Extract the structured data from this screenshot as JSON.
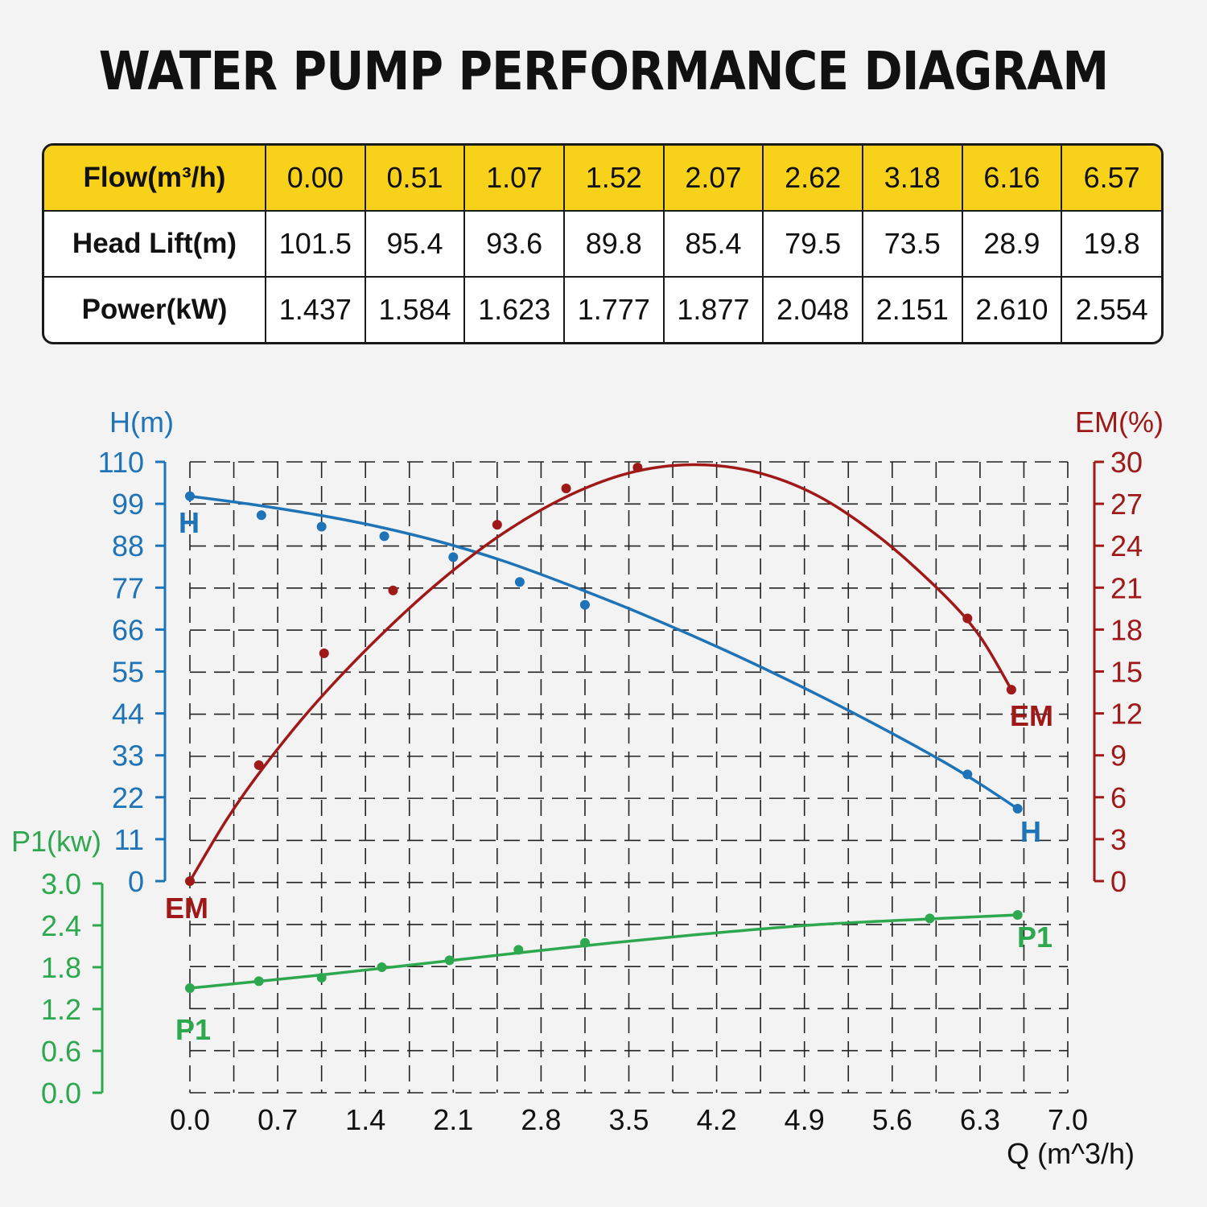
{
  "title": "WATER PUMP PERFORMANCE DIAGRAM",
  "table": {
    "rows": [
      {
        "label": "Flow(m³/h)",
        "values": [
          "0.00",
          "0.51",
          "1.07",
          "1.52",
          "2.07",
          "2.62",
          "3.18",
          "6.16",
          "6.57"
        ]
      },
      {
        "label": "Head Lift(m)",
        "values": [
          "101.5",
          "95.4",
          "93.6",
          "89.8",
          "85.4",
          "79.5",
          "73.5",
          "28.9",
          "19.8"
        ]
      },
      {
        "label": "Power(kW)",
        "values": [
          "1.437",
          "1.584",
          "1.623",
          "1.777",
          "1.877",
          "2.048",
          "2.151",
          "2.610",
          "2.554"
        ]
      }
    ]
  },
  "chart_data": {
    "type": "line",
    "xlabel": "Q (m^3/h)",
    "xlim": [
      0,
      7.0
    ],
    "xticks": [
      "0.0",
      "0.7",
      "1.4",
      "2.1",
      "2.8",
      "3.5",
      "4.2",
      "4.9",
      "5.6",
      "6.3",
      "7.0"
    ],
    "grid": true,
    "axes": {
      "head": {
        "label": "H(m)",
        "lim": [
          0,
          110
        ],
        "ticks": [
          "0",
          "11",
          "22",
          "33",
          "44",
          "55",
          "66",
          "77",
          "88",
          "99",
          "110"
        ],
        "color": "#1f73b7"
      },
      "efficiency": {
        "label": "EM(%)",
        "lim": [
          0,
          30
        ],
        "ticks": [
          "0",
          "3",
          "6",
          "9",
          "12",
          "15",
          "18",
          "21",
          "24",
          "27",
          "30"
        ],
        "color": "#a01919"
      },
      "power": {
        "label": "P1(kw)",
        "lim": [
          0,
          3.0
        ],
        "ticks": [
          "0.0",
          "0.6",
          "1.2",
          "1.8",
          "2.4",
          "3.0"
        ],
        "color": "#2ea84f"
      }
    },
    "series": [
      {
        "name": "H",
        "axis": "head",
        "points": [
          [
            0,
            101
          ],
          [
            0.57,
            96
          ],
          [
            1.05,
            93
          ],
          [
            1.55,
            90.5
          ],
          [
            2.1,
            85
          ],
          [
            2.63,
            78.5
          ],
          [
            3.15,
            72.5
          ],
          [
            6.2,
            28
          ],
          [
            6.6,
            19
          ]
        ],
        "curve": [
          [
            0,
            101
          ],
          [
            0.5,
            98.8
          ],
          [
            1.0,
            96.2
          ],
          [
            1.5,
            93
          ],
          [
            2.0,
            89
          ],
          [
            2.5,
            84
          ],
          [
            3.0,
            78
          ],
          [
            3.5,
            71.5
          ],
          [
            4.0,
            64.5
          ],
          [
            4.5,
            57
          ],
          [
            5.0,
            49
          ],
          [
            5.5,
            40.5
          ],
          [
            6.0,
            31.5
          ],
          [
            6.3,
            25.5
          ],
          [
            6.6,
            19
          ]
        ],
        "labels": [
          "H",
          "H"
        ]
      },
      {
        "name": "EM",
        "axis": "efficiency",
        "points": [
          [
            0,
            0
          ],
          [
            0.55,
            8.3
          ],
          [
            1.07,
            16.3
          ],
          [
            1.62,
            20.8
          ],
          [
            2.45,
            25.5
          ],
          [
            3.0,
            28.1
          ],
          [
            3.57,
            29.6
          ],
          [
            6.2,
            18.8
          ],
          [
            6.55,
            13.7
          ]
        ],
        "curve": [
          [
            0,
            0
          ],
          [
            0.3,
            4.5
          ],
          [
            0.6,
            8.3
          ],
          [
            1.0,
            12.7
          ],
          [
            1.5,
            17.4
          ],
          [
            2.0,
            21.5
          ],
          [
            2.5,
            24.9
          ],
          [
            3.0,
            27.5
          ],
          [
            3.5,
            29.2
          ],
          [
            4.0,
            29.8
          ],
          [
            4.5,
            29.3
          ],
          [
            5.0,
            27.6
          ],
          [
            5.5,
            24.6
          ],
          [
            6.0,
            20.6
          ],
          [
            6.3,
            17.5
          ],
          [
            6.55,
            13.7
          ]
        ],
        "labels": [
          "EM",
          "EM"
        ]
      },
      {
        "name": "P1",
        "axis": "power",
        "points": [
          [
            0,
            1.5
          ],
          [
            0.55,
            1.6
          ],
          [
            1.05,
            1.65
          ],
          [
            1.53,
            1.8
          ],
          [
            2.07,
            1.9
          ],
          [
            2.62,
            2.05
          ],
          [
            3.15,
            2.15
          ],
          [
            5.9,
            2.5
          ],
          [
            6.6,
            2.55
          ]
        ],
        "curve": [
          [
            0,
            1.5
          ],
          [
            1.0,
            1.68
          ],
          [
            2.0,
            1.88
          ],
          [
            3.0,
            2.08
          ],
          [
            4.0,
            2.26
          ],
          [
            5.0,
            2.41
          ],
          [
            6.0,
            2.5
          ],
          [
            6.6,
            2.55
          ]
        ],
        "labels": [
          "P1",
          "P1"
        ]
      }
    ]
  }
}
